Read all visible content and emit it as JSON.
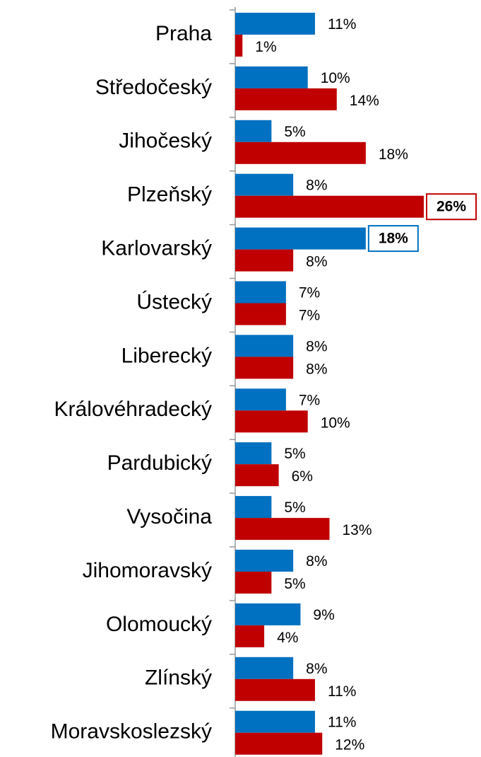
{
  "chart_data": {
    "type": "barh",
    "categories": [
      "Praha",
      "Středočeský",
      "Jihočeský",
      "Plzeňský",
      "Karlovarský",
      "Ústecký",
      "Liberecký",
      "Královéhradecký",
      "Pardubický",
      "Vysočina",
      "Jihomoravský",
      "Olomoucký",
      "Zlínský",
      "Moravskoslezský"
    ],
    "series": [
      {
        "color": "#0070c0",
        "values": [
          11,
          10,
          5,
          8,
          18,
          7,
          8,
          7,
          5,
          5,
          8,
          9,
          8,
          11
        ],
        "value_labels": [
          "11%",
          "10%",
          "5%",
          "8%",
          "18%",
          "7%",
          "8%",
          "7%",
          "5%",
          "5%",
          "8%",
          "9%",
          "8%",
          "11%"
        ],
        "highlight_index": 4
      },
      {
        "color": "#c00000",
        "values": [
          1,
          14,
          18,
          26,
          8,
          7,
          8,
          10,
          6,
          13,
          5,
          4,
          11,
          12
        ],
        "value_labels": [
          "1%",
          "14%",
          "18%",
          "26%",
          "8%",
          "7%",
          "8%",
          "10%",
          "6%",
          "13%",
          "5%",
          "4%",
          "11%",
          "12%"
        ],
        "highlight_index": 3
      }
    ]
  }
}
